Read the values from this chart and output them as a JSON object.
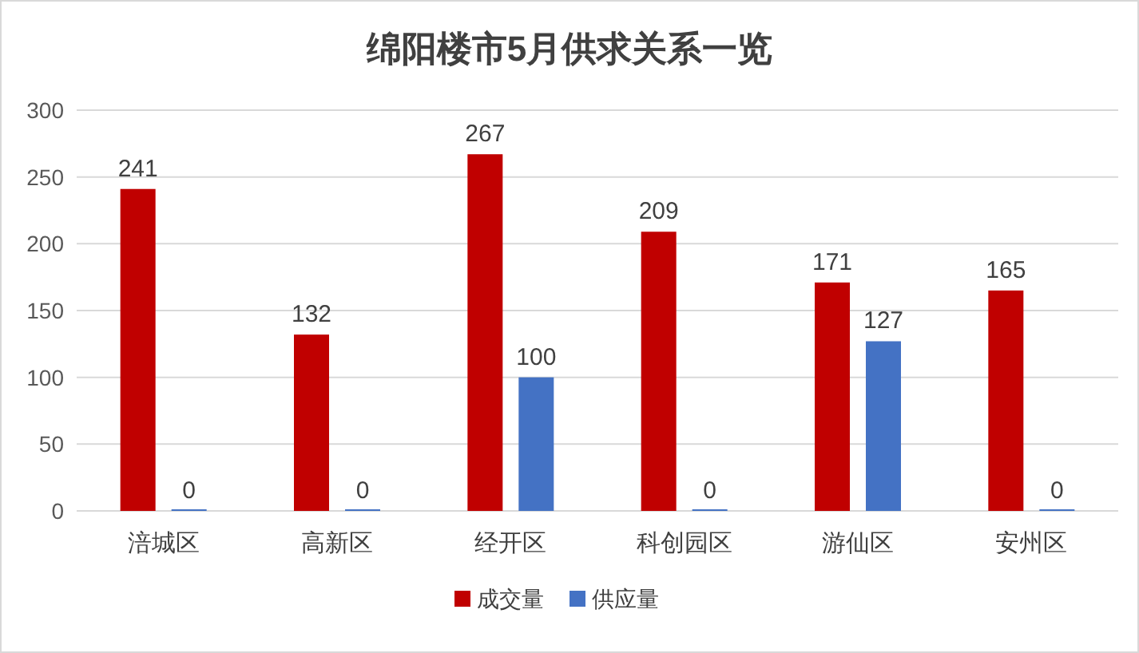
{
  "chart_data": {
    "type": "bar",
    "title": "绵阳楼市5月供求关系一览",
    "categories": [
      "涪城区",
      "高新区",
      "经开区",
      "科创园区",
      "游仙区",
      "安州区"
    ],
    "series": [
      {
        "name": "成交量",
        "color": "#c00000",
        "values": [
          241,
          132,
          267,
          209,
          171,
          165
        ]
      },
      {
        "name": "供应量",
        "color": "#4472c4",
        "values": [
          0,
          0,
          100,
          0,
          127,
          0
        ]
      }
    ],
    "ylim": [
      0,
      300
    ],
    "yticks": [
      0,
      50,
      100,
      150,
      200,
      250,
      300
    ],
    "grid": "y",
    "legend": "bottom",
    "data_labels": true
  }
}
